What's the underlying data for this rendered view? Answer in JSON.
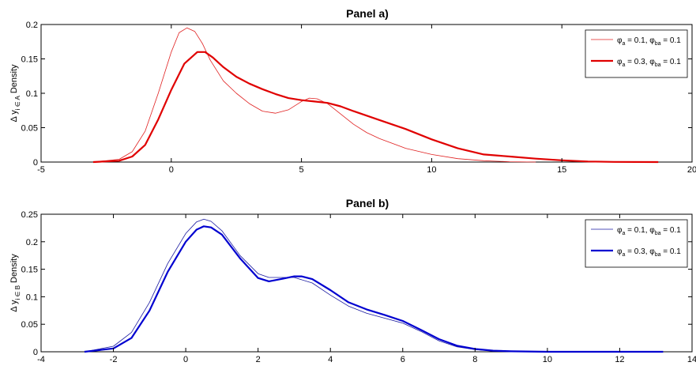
{
  "chart_data": [
    {
      "type": "line",
      "title": "Panel a)",
      "ylabel_main": "Δ y",
      "ylabel_sub": "i ∈ A",
      "ylabel_tail": "Density",
      "xlim": [
        -5,
        20
      ],
      "ylim": [
        0,
        0.2
      ],
      "xticks": [
        -5,
        0,
        5,
        10,
        15,
        20
      ],
      "yticks": [
        0,
        0.05,
        0.1,
        0.15,
        0.2
      ],
      "xtick_labels": [
        "-5",
        "0",
        "5",
        "10",
        "15",
        "20"
      ],
      "ytick_labels": [
        "0",
        "0.05",
        "0.1",
        "0.15",
        "0.2"
      ],
      "legend": "top-right",
      "grid": false,
      "series": [
        {
          "name": "φa = 0.1, φba = 0.1",
          "legend_parts": [
            "φ",
            "a",
            " = 0.1, φ",
            "ba",
            " = 0.1"
          ],
          "color": "#e02020",
          "width": 0.8,
          "x": [
            -3.0,
            -2.0,
            -1.5,
            -1.0,
            -0.5,
            0.0,
            0.3,
            0.6,
            0.9,
            1.2,
            1.5,
            2.0,
            2.5,
            3.0,
            3.5,
            4.0,
            4.5,
            5.0,
            5.3,
            5.6,
            6.0,
            6.5,
            7.0,
            7.5,
            8.0,
            9.0,
            10.0,
            11.0,
            12.0,
            13.0,
            14.0
          ],
          "y": [
            0.0,
            0.004,
            0.015,
            0.045,
            0.1,
            0.16,
            0.188,
            0.195,
            0.19,
            0.172,
            0.148,
            0.118,
            0.1,
            0.085,
            0.074,
            0.071,
            0.076,
            0.088,
            0.093,
            0.092,
            0.085,
            0.07,
            0.055,
            0.043,
            0.034,
            0.02,
            0.011,
            0.005,
            0.002,
            0.0005,
            0.0
          ]
        },
        {
          "name": "φa = 0.3, φba = 0.1",
          "legend_parts": [
            "φ",
            "a",
            " = 0.3, φ",
            "ba",
            " = 0.1"
          ],
          "color": "#e00000",
          "width": 2.2,
          "x": [
            -3.0,
            -2.0,
            -1.5,
            -1.0,
            -0.5,
            0.0,
            0.5,
            1.0,
            1.3,
            1.6,
            2.0,
            2.5,
            3.0,
            3.5,
            4.0,
            4.5,
            5.0,
            5.5,
            6.0,
            6.5,
            7.0,
            8.0,
            9.0,
            10.0,
            11.0,
            12.0,
            13.0,
            14.0,
            15.0,
            16.0,
            17.0,
            18.7
          ],
          "y": [
            0.0,
            0.002,
            0.008,
            0.025,
            0.062,
            0.105,
            0.143,
            0.16,
            0.16,
            0.152,
            0.138,
            0.124,
            0.114,
            0.106,
            0.099,
            0.093,
            0.09,
            0.088,
            0.086,
            0.081,
            0.074,
            0.061,
            0.048,
            0.033,
            0.02,
            0.011,
            0.008,
            0.005,
            0.0025,
            0.0008,
            0.0002,
            0.0
          ]
        }
      ]
    },
    {
      "type": "line",
      "title": "Panel b)",
      "ylabel_main": "Δ y",
      "ylabel_sub": "i ∈ B",
      "ylabel_tail": "Density",
      "xlim": [
        -4,
        14
      ],
      "ylim": [
        0,
        0.25
      ],
      "xticks": [
        -4,
        -2,
        0,
        2,
        4,
        6,
        8,
        10,
        12,
        14
      ],
      "yticks": [
        0,
        0.05,
        0.1,
        0.15,
        0.2,
        0.25
      ],
      "xtick_labels": [
        "-4",
        "-2",
        "0",
        "2",
        "4",
        "6",
        "8",
        "10",
        "12",
        "14"
      ],
      "ytick_labels": [
        "0",
        "0.05",
        "0.1",
        "0.15",
        "0.2",
        "0.25"
      ],
      "legend": "top-right",
      "grid": false,
      "series": [
        {
          "name": "φa = 0.1, φba = 0.1",
          "legend_parts": [
            "φ",
            "a",
            " = 0.1, φ",
            "ba",
            " = 0.1"
          ],
          "color": "#1a1aa0",
          "width": 0.8,
          "x": [
            -2.8,
            -2.0,
            -1.5,
            -1.0,
            -0.5,
            0.0,
            0.3,
            0.5,
            0.7,
            1.0,
            1.5,
            2.0,
            2.3,
            2.7,
            3.0,
            3.5,
            4.0,
            4.5,
            5.0,
            5.5,
            6.0,
            6.5,
            7.0,
            7.5,
            8.0,
            8.5,
            9.0,
            10.0,
            11.0,
            12.0,
            13.2
          ],
          "y": [
            0.0,
            0.01,
            0.035,
            0.09,
            0.16,
            0.215,
            0.236,
            0.241,
            0.237,
            0.22,
            0.175,
            0.142,
            0.135,
            0.135,
            0.135,
            0.125,
            0.103,
            0.083,
            0.07,
            0.061,
            0.052,
            0.037,
            0.02,
            0.009,
            0.004,
            0.0015,
            0.0005,
            0.0,
            0.0,
            0.0,
            0.0
          ]
        },
        {
          "name": "φa = 0.3, φba = 0.1",
          "legend_parts": [
            "φ",
            "a",
            " = 0.3, φ",
            "ba",
            " = 0.1"
          ],
          "color": "#0000d0",
          "width": 2.2,
          "x": [
            -2.8,
            -2.0,
            -1.5,
            -1.0,
            -0.5,
            0.0,
            0.3,
            0.5,
            0.7,
            1.0,
            1.5,
            2.0,
            2.3,
            2.7,
            3.0,
            3.2,
            3.5,
            4.0,
            4.5,
            5.0,
            5.5,
            6.0,
            6.5,
            7.0,
            7.5,
            8.0,
            8.5,
            9.0,
            10.0,
            11.0,
            12.0,
            13.2
          ],
          "y": [
            0.0,
            0.006,
            0.025,
            0.075,
            0.145,
            0.2,
            0.222,
            0.228,
            0.226,
            0.213,
            0.17,
            0.134,
            0.128,
            0.133,
            0.137,
            0.137,
            0.132,
            0.112,
            0.09,
            0.077,
            0.067,
            0.056,
            0.04,
            0.023,
            0.011,
            0.005,
            0.002,
            0.0008,
            0.0,
            0.0,
            0.0,
            0.0
          ]
        }
      ]
    }
  ]
}
